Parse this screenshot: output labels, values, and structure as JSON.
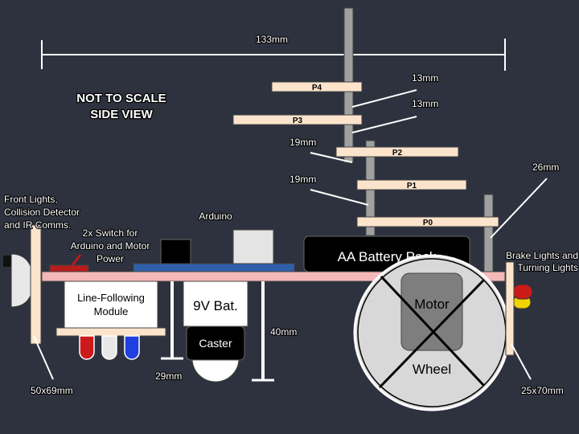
{
  "dimensions": {
    "width_label": "133mm",
    "gap_p4_p3": "13mm",
    "gap_p3_p2": "13mm",
    "gap_p2_p1": "19mm",
    "gap_p1_p0": "19mm",
    "brake_height": "26mm",
    "caster_height": "40mm",
    "caster_gap": "29mm",
    "front_panel_size": "50x69mm",
    "rear_panel_size": "25x70mm"
  },
  "title_lines": [
    "NOT TO SCALE",
    "SIDE VIEW"
  ],
  "platforms": [
    "P4",
    "P3",
    "P2",
    "P1",
    "P0"
  ],
  "labels": {
    "front_lights_lines": [
      "Front Lights,",
      "Collision Detector",
      "and IR Comms."
    ],
    "switch_lines": [
      "2x Switch for",
      "Arduino and Motor",
      "Power"
    ],
    "arduino": "Arduino",
    "brake_lines": [
      "Brake Lights and",
      "Turning Lights"
    ]
  },
  "components": {
    "battery_pack": "AA Battery Pack",
    "line_module_lines": [
      "Line-Following",
      "Module"
    ],
    "nine_volt": "9V Bat.",
    "caster": "Caster",
    "motor": "Motor",
    "wheel": "Wheel"
  },
  "colors": {
    "background": "#2d323e",
    "platform": "#fce4cc",
    "chassis": "#f4b8b8",
    "shelf": "#2e5fa8",
    "mast": "#a0a0a0",
    "switch": "#b81c1c",
    "led_red": "#cc1a1a",
    "led_blue": "#1f3fe0",
    "led_yellow": "#f2d200"
  }
}
